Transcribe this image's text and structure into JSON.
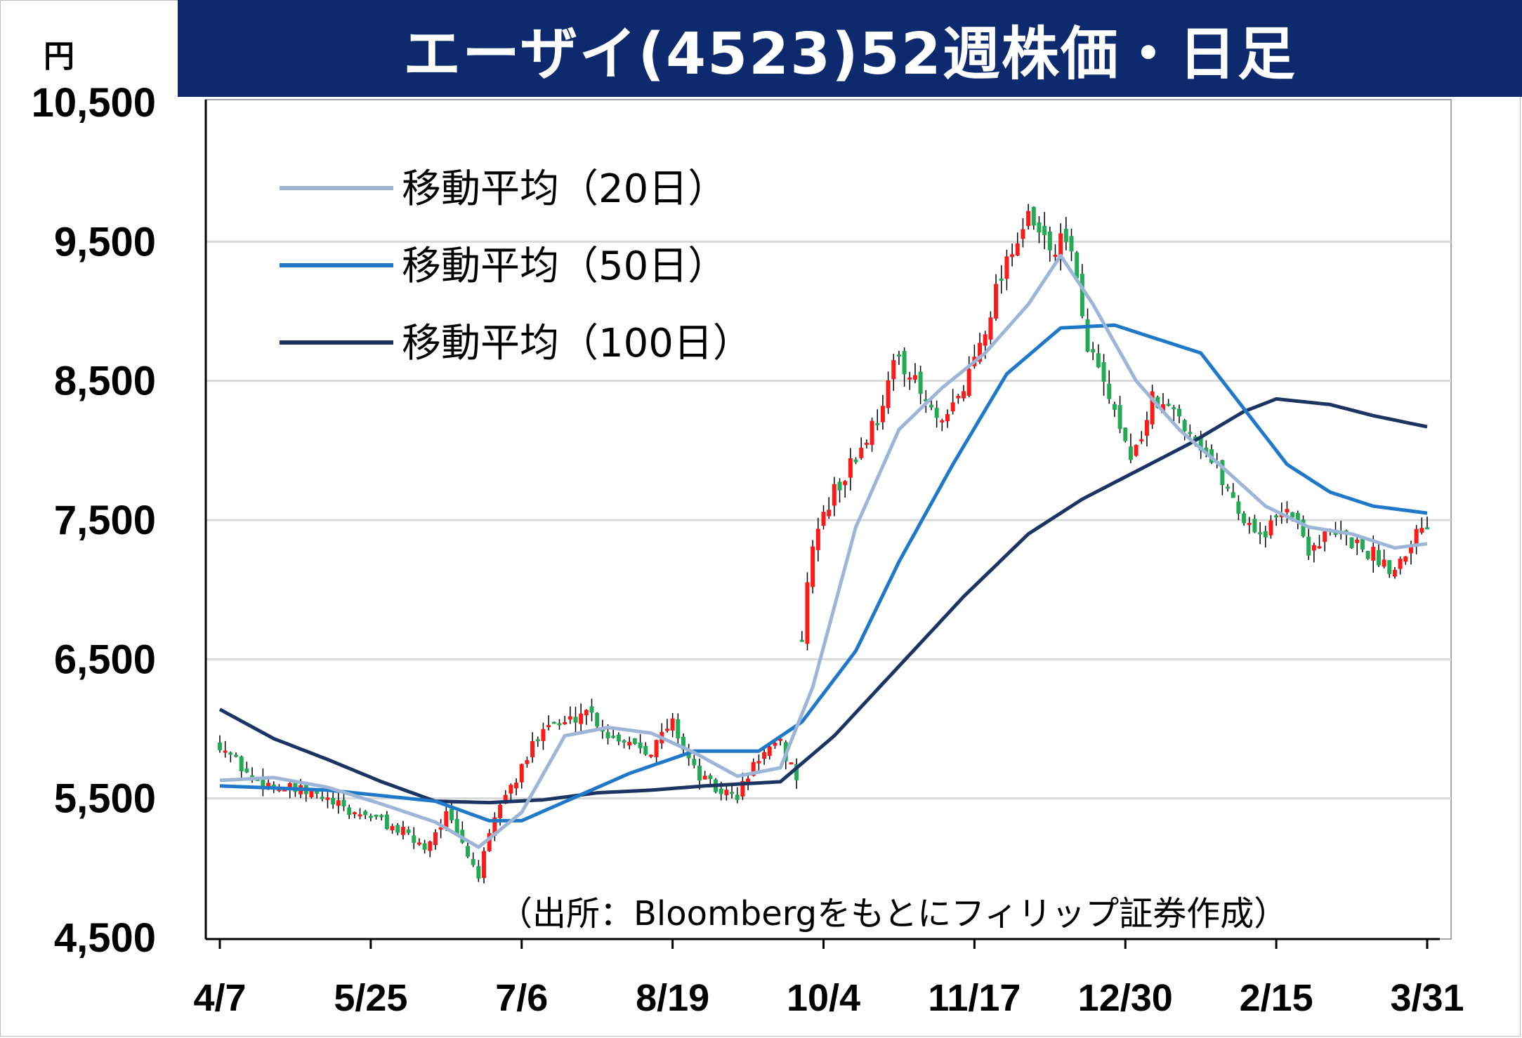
{
  "title": "エーザイ(4523)52週株価・日足",
  "unit": "円",
  "source": "（出所：Bloombergをもとにフィリップ証券作成）",
  "colors": {
    "title_bg": "#0d2a6e",
    "up": "#ff1a1a",
    "down": "#22aa55",
    "ma20": "#9db6d8",
    "ma50": "#1f78c8",
    "ma100": "#1c3461",
    "grid": "#d9d9d9"
  },
  "chart_data": {
    "type": "candlestick",
    "y_ticks": [
      "4,500",
      "5,500",
      "6,500",
      "7,500",
      "8,500",
      "9,500",
      "10,500"
    ],
    "y_tick_values": [
      4500,
      5500,
      6500,
      7500,
      8500,
      9500,
      10500
    ],
    "ylim": [
      4500,
      10500
    ],
    "x_ticks": [
      "4/7",
      "5/25",
      "7/6",
      "8/19",
      "10/4",
      "11/17",
      "12/30",
      "2/15",
      "3/31"
    ],
    "grid": "horizontal",
    "legend_position": "top-left",
    "legend": [
      {
        "label": "移動平均（20日）",
        "color_key": "ma20"
      },
      {
        "label": "移動平均（50日）",
        "color_key": "ma50"
      },
      {
        "label": "移動平均（100日）",
        "color_key": "ma100"
      }
    ],
    "close_approx": [
      [
        0,
        5900
      ],
      [
        6,
        5640
      ],
      [
        12,
        5570
      ],
      [
        18,
        5520
      ],
      [
        24,
        5400
      ],
      [
        28,
        5380
      ],
      [
        34,
        5250
      ],
      [
        38,
        5150
      ],
      [
        42,
        5380
      ],
      [
        48,
        4950
      ],
      [
        52,
        5470
      ],
      [
        56,
        5700
      ],
      [
        60,
        6050
      ],
      [
        64,
        6030
      ],
      [
        68,
        6150
      ],
      [
        72,
        5960
      ],
      [
        76,
        5920
      ],
      [
        80,
        5850
      ],
      [
        84,
        6050
      ],
      [
        88,
        5700
      ],
      [
        92,
        5560
      ],
      [
        96,
        5520
      ],
      [
        100,
        5800
      ],
      [
        104,
        5880
      ],
      [
        107,
        5660
      ],
      [
        108,
        6640
      ],
      [
        110,
        7350
      ],
      [
        114,
        7700
      ],
      [
        118,
        7950
      ],
      [
        122,
        8250
      ],
      [
        126,
        8700
      ],
      [
        130,
        8400
      ],
      [
        134,
        8150
      ],
      [
        138,
        8450
      ],
      [
        142,
        8900
      ],
      [
        146,
        9400
      ],
      [
        150,
        9650
      ],
      [
        154,
        9450
      ],
      [
        158,
        9500
      ],
      [
        160,
        8900
      ],
      [
        164,
        8450
      ],
      [
        168,
        8000
      ],
      [
        170,
        8000
      ],
      [
        173,
        8350
      ],
      [
        178,
        8250
      ],
      [
        182,
        8050
      ],
      [
        186,
        7800
      ],
      [
        190,
        7500
      ],
      [
        194,
        7400
      ],
      [
        198,
        7620
      ],
      [
        202,
        7300
      ],
      [
        206,
        7400
      ],
      [
        210,
        7350
      ],
      [
        214,
        7250
      ],
      [
        218,
        7150
      ],
      [
        221,
        7370
      ],
      [
        224,
        7500
      ]
    ],
    "ma20_approx": [
      [
        0,
        5630
      ],
      [
        10,
        5650
      ],
      [
        20,
        5580
      ],
      [
        30,
        5460
      ],
      [
        40,
        5330
      ],
      [
        48,
        5150
      ],
      [
        56,
        5400
      ],
      [
        64,
        5950
      ],
      [
        72,
        6010
      ],
      [
        80,
        5970
      ],
      [
        88,
        5830
      ],
      [
        96,
        5660
      ],
      [
        104,
        5720
      ],
      [
        110,
        6300
      ],
      [
        118,
        7450
      ],
      [
        126,
        8150
      ],
      [
        134,
        8450
      ],
      [
        142,
        8700
      ],
      [
        150,
        9050
      ],
      [
        156,
        9400
      ],
      [
        162,
        9050
      ],
      [
        170,
        8500
      ],
      [
        178,
        8150
      ],
      [
        186,
        7880
      ],
      [
        194,
        7600
      ],
      [
        202,
        7450
      ],
      [
        210,
        7400
      ],
      [
        218,
        7300
      ],
      [
        224,
        7330
      ]
    ],
    "ma50_approx": [
      [
        0,
        5590
      ],
      [
        20,
        5560
      ],
      [
        40,
        5480
      ],
      [
        50,
        5340
      ],
      [
        56,
        5340
      ],
      [
        66,
        5510
      ],
      [
        76,
        5680
      ],
      [
        88,
        5840
      ],
      [
        100,
        5840
      ],
      [
        108,
        6050
      ],
      [
        118,
        6560
      ],
      [
        126,
        7200
      ],
      [
        136,
        7900
      ],
      [
        146,
        8550
      ],
      [
        156,
        8880
      ],
      [
        166,
        8900
      ],
      [
        174,
        8800
      ],
      [
        182,
        8700
      ],
      [
        190,
        8300
      ],
      [
        198,
        7900
      ],
      [
        206,
        7700
      ],
      [
        214,
        7600
      ],
      [
        224,
        7550
      ]
    ],
    "ma100_approx": [
      [
        0,
        6140
      ],
      [
        10,
        5930
      ],
      [
        20,
        5780
      ],
      [
        30,
        5620
      ],
      [
        40,
        5480
      ],
      [
        50,
        5470
      ],
      [
        60,
        5490
      ],
      [
        70,
        5540
      ],
      [
        80,
        5560
      ],
      [
        90,
        5590
      ],
      [
        104,
        5620
      ],
      [
        114,
        5950
      ],
      [
        126,
        6450
      ],
      [
        138,
        6950
      ],
      [
        150,
        7400
      ],
      [
        160,
        7650
      ],
      [
        170,
        7850
      ],
      [
        180,
        8050
      ],
      [
        190,
        8280
      ],
      [
        196,
        8370
      ],
      [
        206,
        8330
      ],
      [
        214,
        8250
      ],
      [
        224,
        8170
      ]
    ]
  }
}
